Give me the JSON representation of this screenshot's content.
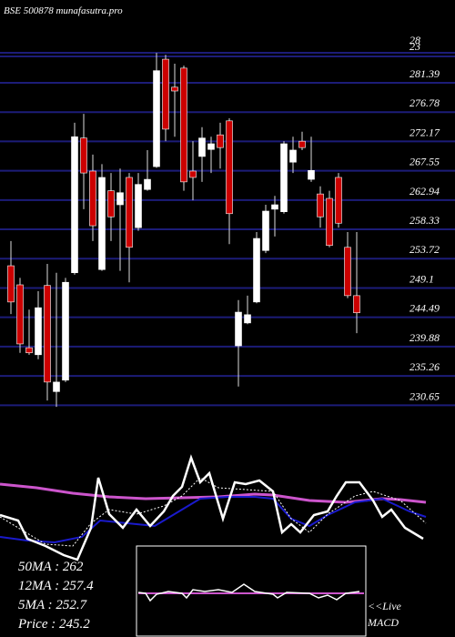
{
  "chart_data": {
    "type": "candlestick",
    "title": "BSE 500878 munafasutra.pro",
    "ylim": [
      228.55,
      294.42
    ],
    "yticks": [
      281.39,
      276.78,
      272.17,
      267.55,
      262.94,
      258.33,
      253.72,
      249.1,
      244.49,
      239.88,
      235.26,
      230.65
    ],
    "top_labels": [
      "28",
      "23"
    ],
    "up_color": "#ffffff",
    "down_color": "#cc0000",
    "grid": true,
    "open": [
      252.6,
      249.6,
      239.7,
      238.6,
      249.5,
      232.8,
      234.6,
      251.5,
      272.7,
      267.5,
      252.0,
      264.4,
      262.2,
      266.5,
      258.6,
      264.6,
      268.2,
      285.1,
      280.7,
      283.7,
      267.5,
      269.8,
      270.9,
      273.2,
      275.4,
      240.0,
      243.6,
      246.9,
      255.0,
      261.5,
      261.1,
      268.9,
      272.2,
      266.2,
      263.9,
      263.2,
      266.5,
      255.5,
      247.9
    ],
    "high": [
      256.5,
      250.7,
      245.7,
      248.6,
      252.9,
      251.5,
      250.7,
      275.1,
      276.5,
      270.1,
      268.6,
      267.2,
      267.9,
      267.2,
      267.2,
      270.8,
      286.1,
      285.8,
      284.4,
      284.1,
      272.2,
      274.4,
      272.9,
      275.1,
      275.8,
      247.2,
      247.9,
      257.9,
      262.2,
      263.6,
      272.2,
      272.9,
      273.7,
      272.9,
      265.1,
      264.4,
      267.2,
      257.9,
      257.9
    ],
    "low": [
      245.0,
      238.9,
      238.6,
      237.9,
      231.4,
      230.4,
      234.3,
      251.2,
      261.5,
      256.5,
      251.8,
      256.5,
      251.8,
      250.0,
      258.1,
      264.4,
      268.0,
      272.2,
      272.9,
      264.4,
      262.9,
      265.8,
      267.2,
      267.9,
      256.0,
      233.6,
      243.4,
      246.7,
      254.6,
      257.2,
      260.8,
      267.2,
      270.8,
      265.8,
      258.6,
      255.5,
      258.6,
      247.5,
      242.0
    ],
    "close": [
      246.9,
      240.3,
      238.9,
      246.0,
      234.3,
      234.3,
      250.0,
      272.9,
      267.2,
      258.9,
      266.5,
      260.3,
      264.1,
      255.5,
      265.4,
      266.2,
      283.3,
      274.1,
      280.1,
      265.8,
      266.5,
      272.7,
      271.8,
      271.2,
      260.8,
      245.3,
      244.9,
      256.9,
      261.2,
      262.2,
      271.8,
      270.8,
      271.2,
      267.6,
      260.3,
      255.8,
      259.3,
      247.9,
      245.2
    ],
    "legend_texts": [
      "50MA : 262",
      "12MA : 257.4",
      "5MA : 252.7",
      "Price  : 245.2"
    ],
    "live_label": "<<Live",
    "macd_label": "MACD"
  }
}
